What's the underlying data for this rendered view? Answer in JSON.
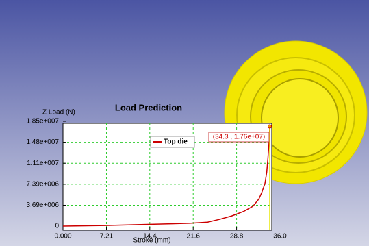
{
  "chart_data": {
    "type": "line",
    "title": "Load Prediction",
    "y_label": "Z Load (N)",
    "x_label": "Stroke (mm)",
    "annotation": "(34.3 , 1.76e+07)",
    "xlim": [
      0,
      36
    ],
    "ylim": [
      0,
      18500000
    ],
    "xticks": [
      {
        "value": 0,
        "label": "0.000"
      },
      7.21,
      14.4,
      21.6,
      28.8,
      {
        "value": 36,
        "label": "36.0"
      }
    ],
    "yticks": [
      0,
      {
        "value": 3690000,
        "label": "3.69e+006"
      },
      {
        "value": 7390000,
        "label": "7.39e+006"
      },
      {
        "value": 11100000,
        "label": "1.11e+007"
      },
      {
        "value": 14800000,
        "label": "1.48e+007"
      },
      {
        "value": 18500000,
        "label": "1.85e+007"
      }
    ],
    "grid": true,
    "x": [
      0,
      7,
      14,
      21,
      24,
      26,
      28,
      30,
      31.5,
      32.5,
      33,
      33.5,
      33.8,
      34,
      34.2,
      34.3
    ],
    "series": [
      {
        "name": "Top die",
        "color": "#cc0000",
        "values": [
          0,
          100000,
          300000,
          500000,
          700000,
          1200000,
          1800000,
          2600000,
          3500000,
          4800000,
          6000000,
          7500000,
          9500000,
          12000000,
          15000000,
          17600000
        ]
      }
    ]
  }
}
